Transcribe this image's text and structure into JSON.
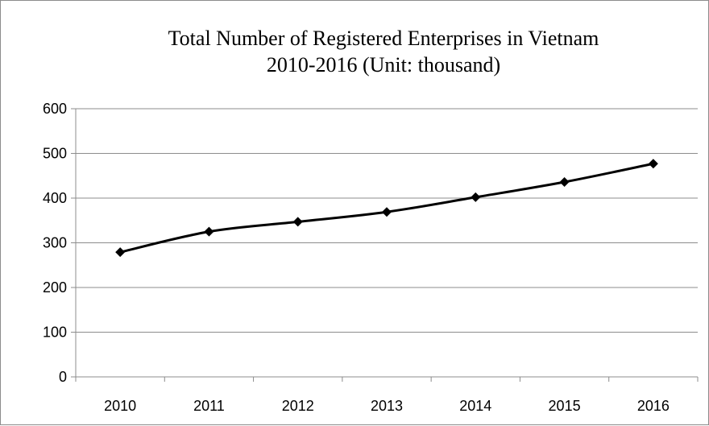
{
  "chart_data": {
    "type": "line",
    "title_lines": [
      "Total Number of Registered Enterprises in Vietnam",
      "2010-2016 (Unit: thousand)"
    ],
    "categories": [
      "2010",
      "2011",
      "2012",
      "2013",
      "2014",
      "2015",
      "2016"
    ],
    "series": [
      {
        "values": [
          279,
          325,
          347,
          369,
          402,
          436,
          477
        ]
      }
    ],
    "ylim": [
      0,
      600
    ],
    "yticks": [
      "0",
      "100",
      "200",
      "300",
      "400",
      "500",
      "600"
    ],
    "grid": true,
    "legend": "none",
    "line_color": "#000000",
    "grid_color": "#8c8c8c"
  }
}
